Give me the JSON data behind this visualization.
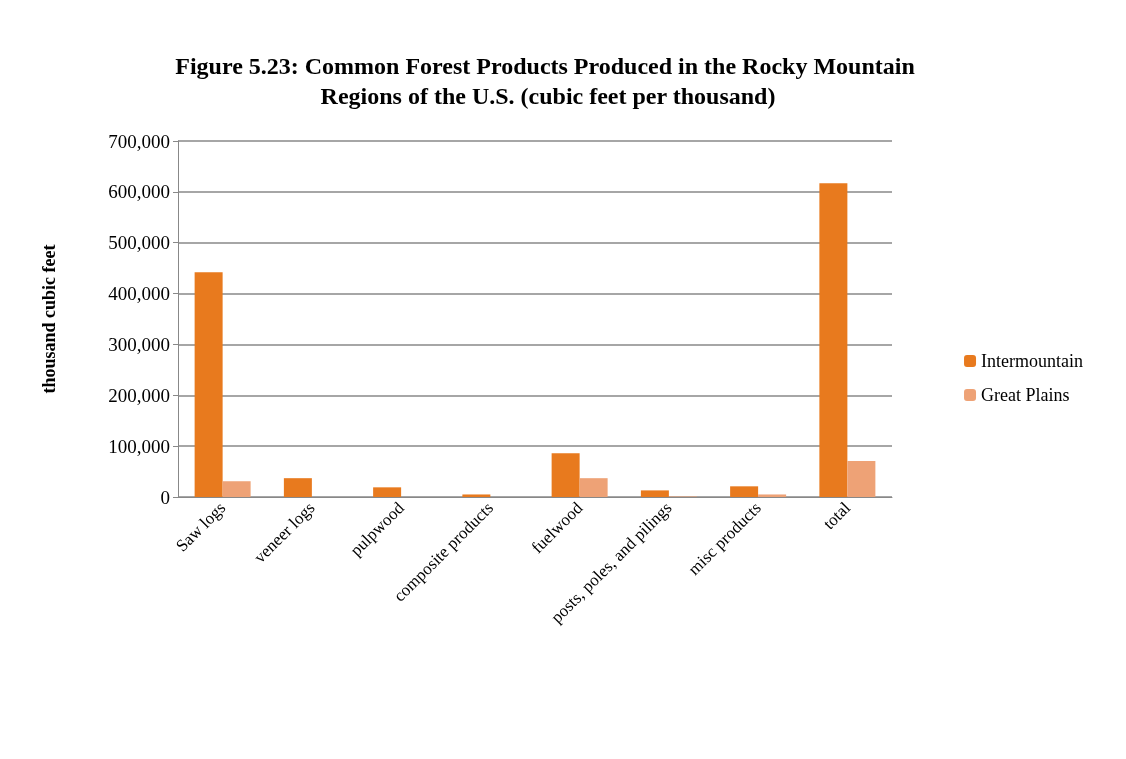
{
  "chart_data": {
    "type": "bar",
    "title": "Figure 5.23: Common Forest Products Produced in the Rocky Mountain Regions of the U.S. (cubic feet per thousand)",
    "ylabel": "thousand cubic feet",
    "categories": [
      "Saw logs",
      "veneer logs",
      "pulpwood",
      "composite products",
      "fuelwood",
      "posts, poles, and pilings",
      "misc products",
      "total"
    ],
    "series": [
      {
        "name": "Intermountain",
        "color": "#e87a1e",
        "values": [
          442000,
          37000,
          19000,
          5000,
          86000,
          13000,
          21000,
          617000
        ]
      },
      {
        "name": "Great Plains",
        "color": "#eea276",
        "values": [
          31000,
          null,
          null,
          null,
          37000,
          1000,
          5000,
          71000
        ]
      }
    ],
    "ylim": [
      0,
      700000
    ],
    "yticks": [
      0,
      {
        "value": 100000,
        "label": "100,000"
      },
      {
        "value": 200000,
        "label": "200,000"
      },
      {
        "value": 300000,
        "label": "300,000"
      },
      {
        "value": 400000,
        "label": "400,000"
      },
      {
        "value": 500000,
        "label": "500,000"
      },
      {
        "value": 600000,
        "label": "600,000"
      },
      {
        "value": 700000,
        "label": "700,000"
      }
    ],
    "grid": "y",
    "legend": "right"
  }
}
